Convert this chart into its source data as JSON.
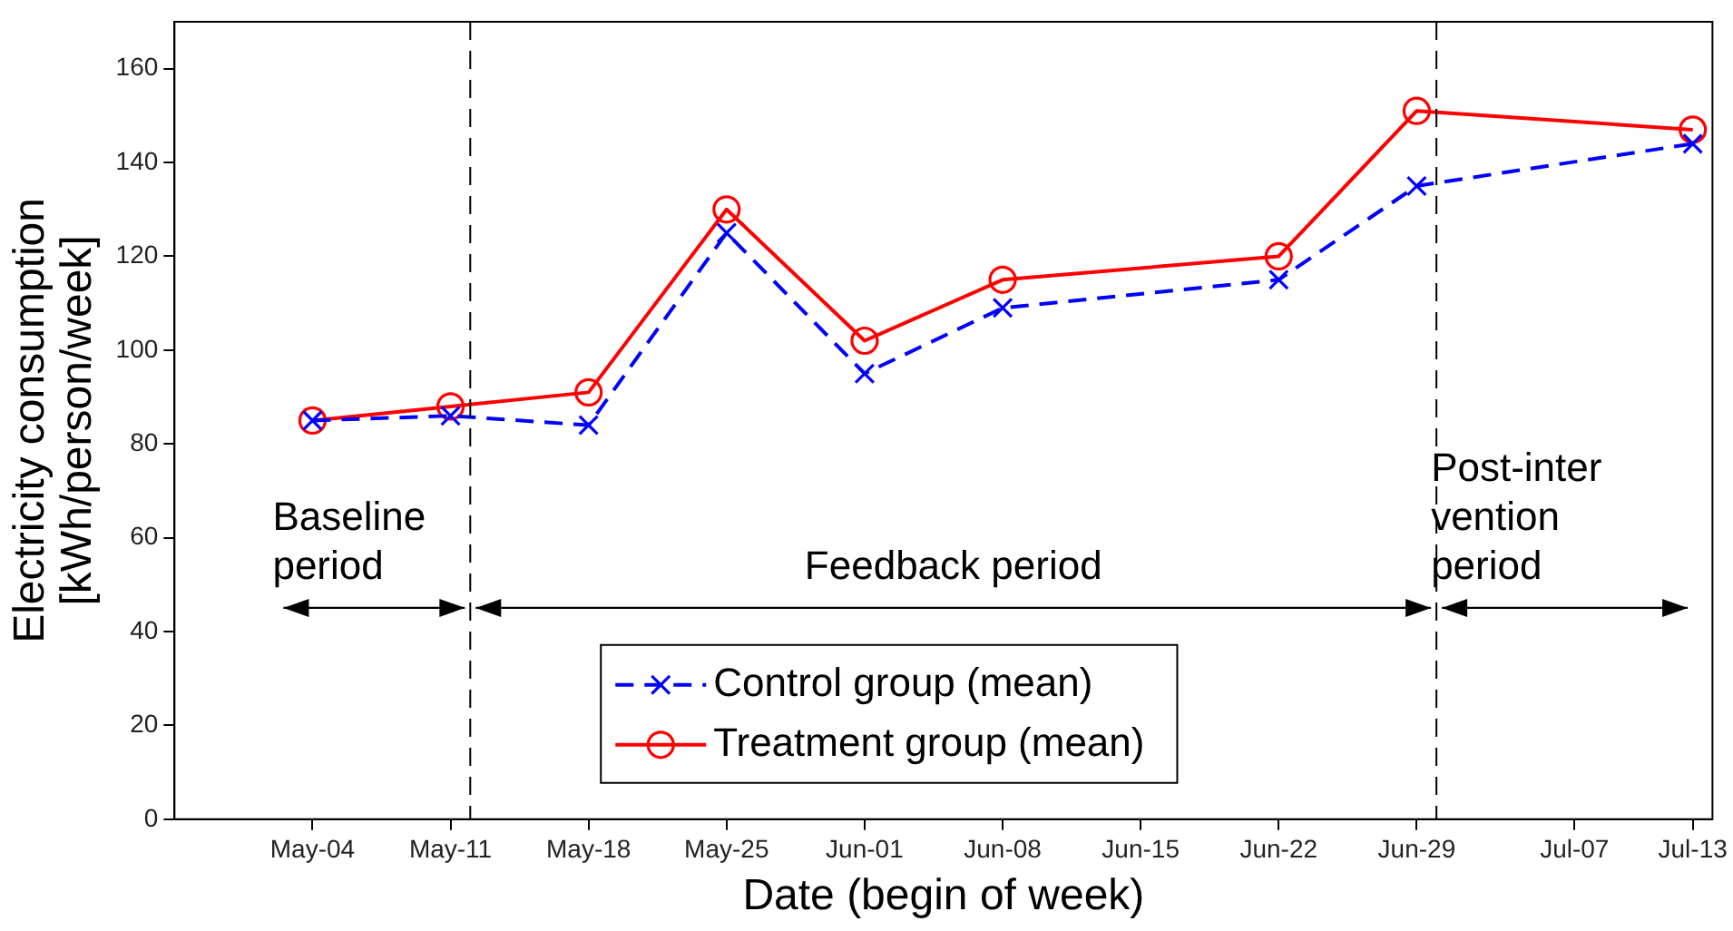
{
  "chart_data": {
    "type": "line",
    "xlabel": "Date (begin of week)",
    "ylabel": "Electricity consumption\n[kWh/person/week]",
    "x": [
      "--05-04",
      "--05-11",
      "--05-18",
      "--05-25",
      "--06-01",
      "--06-08",
      "--06-22",
      "--06-29",
      "--07-13"
    ],
    "series": [
      {
        "name": "Control group (mean)",
        "color": "#0000ff",
        "marker": "cross",
        "line_style": "dashed",
        "values": [
          85,
          86,
          84,
          125,
          95,
          109,
          115,
          135,
          144
        ]
      },
      {
        "name": "Treatment group (mean)",
        "color": "#ff0000",
        "marker": "circle",
        "line_style": "solid",
        "values": [
          85,
          88,
          91,
          130,
          102,
          115,
          120,
          151,
          147
        ]
      }
    ],
    "xlim": [
      "--04-27",
      "--07-14"
    ],
    "xticks": [
      {
        "value": "--05-04",
        "label": "May-04"
      },
      {
        "value": "--05-11",
        "label": "May-11"
      },
      {
        "value": "--05-18",
        "label": "May-18"
      },
      {
        "value": "--05-25",
        "label": "May-25"
      },
      {
        "value": "--06-01",
        "label": "Jun-01"
      },
      {
        "value": "--06-08",
        "label": "Jun-08"
      },
      {
        "value": "--06-15",
        "label": "Jun-15"
      },
      {
        "value": "--06-22",
        "label": "Jun-22"
      },
      {
        "value": "--06-29",
        "label": "Jun-29"
      },
      {
        "value": "--07-07",
        "label": "Jul-07"
      },
      {
        "value": "--07-13",
        "label": "Jul-13"
      }
    ],
    "ylim": [
      0,
      170
    ],
    "yticks": [
      0,
      20,
      40,
      60,
      80,
      100,
      120,
      140,
      160
    ],
    "ref_lines": [
      {
        "axis": "x",
        "value": "--05-12",
        "line_style": "dashed",
        "color": "#000000"
      },
      {
        "axis": "x",
        "value": "--06-30",
        "line_style": "dashed",
        "color": "#000000"
      }
    ],
    "annotations": [
      "Baseline\nperiod",
      "Feedback period",
      "Post-inter\nvention\nperiod"
    ],
    "grid": false,
    "legend": "bottom"
  }
}
